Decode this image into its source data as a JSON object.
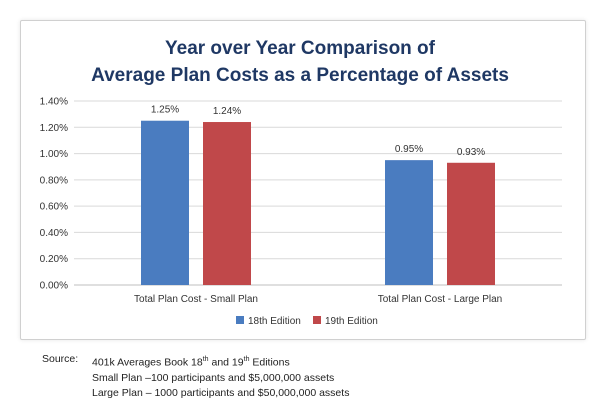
{
  "chart_data": {
    "type": "bar",
    "title_lines": [
      "Year over Year Comparison of",
      "Average Plan Costs as a Percentage of Assets"
    ],
    "categories": [
      "Total Plan Cost - Small Plan",
      "Total Plan Cost - Large Plan"
    ],
    "series": [
      {
        "name": "18th Edition",
        "values": [
          1.25,
          0.95
        ],
        "labels": [
          "1.25%",
          "0.95%"
        ],
        "color": "#4a7cc0"
      },
      {
        "name": "19th Edition",
        "values": [
          1.24,
          0.93
        ],
        "labels": [
          "1.24%",
          "0.93%"
        ],
        "color": "#c0484a"
      }
    ],
    "ylim": [
      0,
      1.4
    ],
    "yticks": [
      "0.00%",
      "0.20%",
      "0.40%",
      "0.60%",
      "0.80%",
      "1.00%",
      "1.20%",
      "1.40%"
    ],
    "ytick_values": [
      0,
      0.2,
      0.4,
      0.6,
      0.8,
      1.0,
      1.2,
      1.4
    ],
    "grid": true,
    "legend_position": "bottom",
    "title_color": "#1f3864"
  },
  "source": {
    "label": "Source:",
    "line1_a": "401k Averages Book 18",
    "line1_sup1": "th",
    "line1_b": " and 19",
    "line1_sup2": "th",
    "line1_c": " Editions",
    "line2": "Small Plan –100 participants and $5,000,000 assets",
    "line3": "Large Plan – 1000 participants and $50,000,000 assets"
  }
}
